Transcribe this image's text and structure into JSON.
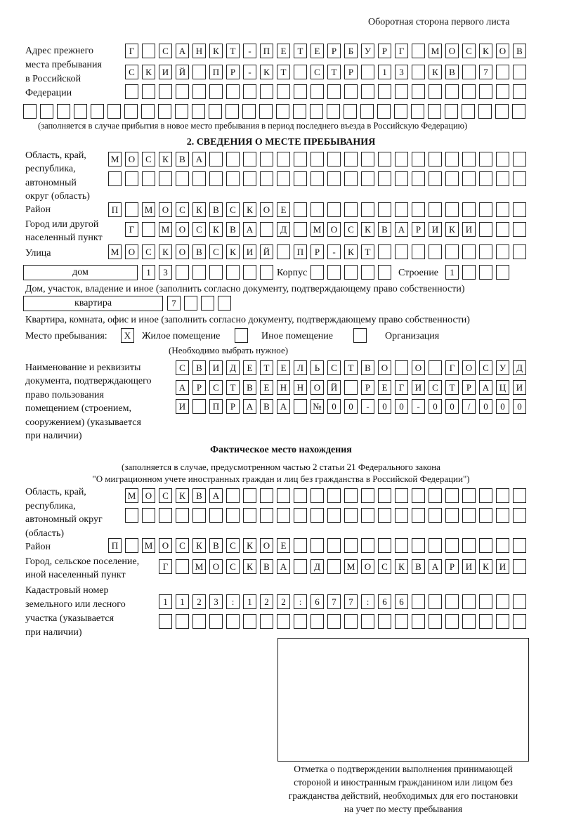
{
  "header": "Оборотная сторона первого листа",
  "prev_address": {
    "label": [
      "Адрес прежнего",
      "места пребывания",
      "в Российской",
      "Федерации"
    ],
    "rows": [
      [
        "Г",
        "",
        "С",
        "А",
        "Н",
        "К",
        "Т",
        "-",
        "П",
        "Е",
        "Т",
        "Е",
        "Р",
        "Б",
        "У",
        "Р",
        "Г",
        "",
        "М",
        "О",
        "С",
        "К",
        "О",
        "В"
      ],
      [
        "С",
        "К",
        "И",
        "Й",
        "",
        "П",
        "Р",
        "-",
        "К",
        "Т",
        "",
        "С",
        "Т",
        "Р",
        "",
        "1",
        "3",
        "",
        "К",
        "В",
        "",
        "7",
        "",
        ""
      ],
      [
        "",
        "",
        "",
        "",
        "",
        "",
        "",
        "",
        "",
        "",
        "",
        "",
        "",
        "",
        "",
        "",
        "",
        "",
        "",
        "",
        "",
        "",
        "",
        ""
      ],
      [
        "",
        "",
        "",
        "",
        "",
        "",
        "",
        "",
        "",
        "",
        "",
        "",
        "",
        "",
        "",
        "",
        "",
        "",
        "",
        "",
        "",
        "",
        "",
        "",
        "",
        "",
        "",
        "",
        "",
        ""
      ]
    ],
    "note": "(заполняется в случае прибытия в новое место пребывания в период последнего въезда в Российскую Федерацию)"
  },
  "section2": {
    "title": "2. СВЕДЕНИЯ О МЕСТЕ ПРЕБЫВАНИЯ",
    "region_label": [
      "Область, край,",
      "республика,",
      "автономный",
      "округ (область)"
    ],
    "region_rows": [
      [
        "М",
        "О",
        "С",
        "К",
        "В",
        "А",
        "",
        "",
        "",
        "",
        "",
        "",
        "",
        "",
        "",
        "",
        "",
        "",
        "",
        "",
        "",
        "",
        "",
        "",
        ""
      ],
      [
        "",
        "",
        "",
        "",
        "",
        "",
        "",
        "",
        "",
        "",
        "",
        "",
        "",
        "",
        "",
        "",
        "",
        "",
        "",
        "",
        "",
        "",
        "",
        "",
        ""
      ]
    ],
    "district_label": "Район",
    "district": [
      "П",
      "",
      "М",
      "О",
      "С",
      "К",
      "В",
      "С",
      "К",
      "О",
      "Е",
      "",
      "",
      "",
      "",
      "",
      "",
      "",
      "",
      "",
      "",
      "",
      "",
      "",
      ""
    ],
    "city_label": [
      "Город или другой",
      "населенный пункт"
    ],
    "city": [
      "Г",
      "",
      "М",
      "О",
      "С",
      "К",
      "В",
      "А",
      "",
      "Д",
      "",
      "М",
      "О",
      "С",
      "К",
      "В",
      "А",
      "Р",
      "И",
      "К",
      "И",
      "",
      "",
      ""
    ],
    "street_label": "Улица",
    "street": [
      "М",
      "О",
      "С",
      "К",
      "О",
      "В",
      "С",
      "К",
      "И",
      "Й",
      "",
      "П",
      "Р",
      "-",
      "К",
      "Т",
      "",
      "",
      "",
      "",
      "",
      "",
      "",
      "",
      ""
    ],
    "house_type": "дом",
    "house": [
      "1",
      "3",
      "",
      "",
      "",
      "",
      "",
      ""
    ],
    "korpus_label": "Корпус",
    "korpus": [
      "",
      "",
      "",
      "",
      ""
    ],
    "stroenie_label": "Строение",
    "stroenie": [
      "1",
      "",
      "",
      ""
    ],
    "house_note": "Дом, участок, владение и иное (заполнить согласно документу, подтверждающему право собственности)",
    "apt_type": "квартира",
    "apt": [
      "7",
      "",
      "",
      ""
    ],
    "apt_note": "Квартира, комната, офис и иное (заполнить согласно документу, подтверждающему право собственности)",
    "stay_label": "Место пребывания:",
    "stay_options": [
      {
        "label": "Жилое помещение",
        "mark": "X"
      },
      {
        "label": "Иное помещение",
        "mark": ""
      },
      {
        "label": "Организация",
        "mark": ""
      }
    ],
    "stay_note": "(Необходимо выбрать нужное)",
    "doc_label": [
      "Наименование и реквизиты",
      "документа, подтверждающего",
      "право пользования",
      "помещением (строением,",
      "сооружением) (указывается",
      "при наличии)"
    ],
    "doc_rows": [
      [
        "С",
        "В",
        "И",
        "Д",
        "Е",
        "Т",
        "Е",
        "Л",
        "Ь",
        "С",
        "Т",
        "В",
        "О",
        "",
        "О",
        "",
        "Г",
        "О",
        "С",
        "У",
        "Д"
      ],
      [
        "А",
        "Р",
        "С",
        "Т",
        "В",
        "Е",
        "Н",
        "Н",
        "О",
        "Й",
        "",
        "Р",
        "Е",
        "Г",
        "И",
        "С",
        "Т",
        "Р",
        "А",
        "Ц",
        "И"
      ],
      [
        "И",
        "",
        "П",
        "Р",
        "А",
        "В",
        "А",
        "",
        "№",
        "0",
        "0",
        "-",
        "0",
        "0",
        "-",
        "0",
        "0",
        "/",
        "0",
        "0",
        "0"
      ]
    ]
  },
  "actual": {
    "title": "Фактическое место нахождения",
    "note": [
      "(заполняется в случае, предусмотренном частью 2 статьи 21 Федерального закона",
      "\"О миграционном учете иностранных граждан и лиц без гражданства в Российской Федерации\")"
    ],
    "region_label": [
      "Область, край,",
      "республика,",
      "автономный округ",
      "(область)"
    ],
    "region_rows": [
      [
        "М",
        "О",
        "С",
        "К",
        "В",
        "А",
        "",
        "",
        "",
        "",
        "",
        "",
        "",
        "",
        "",
        "",
        "",
        "",
        "",
        "",
        "",
        "",
        "",
        ""
      ],
      [
        "",
        "",
        "",
        "",
        "",
        "",
        "",
        "",
        "",
        "",
        "",
        "",
        "",
        "",
        "",
        "",
        "",
        "",
        "",
        "",
        "",
        "",
        "",
        ""
      ]
    ],
    "district_label": "Район",
    "district": [
      "П",
      "",
      "М",
      "О",
      "С",
      "К",
      "В",
      "С",
      "К",
      "О",
      "Е",
      "",
      "",
      "",
      "",
      "",
      "",
      "",
      "",
      "",
      "",
      "",
      "",
      "",
      ""
    ],
    "city_label": [
      "Город, сельское поселение,",
      "иной населенный пункт"
    ],
    "city": [
      "Г",
      "",
      "М",
      "О",
      "С",
      "К",
      "В",
      "А",
      "",
      "Д",
      "",
      "М",
      "О",
      "С",
      "К",
      "В",
      "А",
      "Р",
      "И",
      "К",
      "И",
      ""
    ],
    "cadastre_label": [
      "Кадастровый номер",
      "земельного или лесного",
      "участка (указывается",
      "при наличии)"
    ],
    "cadastre_rows": [
      [
        "1",
        "1",
        "2",
        "3",
        ":",
        "1",
        "2",
        "2",
        ":",
        "6",
        "7",
        "7",
        ":",
        "6",
        "6",
        "",
        "",
        "",
        "",
        "",
        "",
        ""
      ],
      [
        "",
        "",
        "",
        "",
        "",
        "",
        "",
        "",
        "",
        "",
        "",
        "",
        "",
        "",
        "",
        "",
        "",
        "",
        "",
        "",
        "",
        ""
      ]
    ],
    "stamp_caption": [
      "Отметка о подтверждении выполнения принимающей",
      "стороной и иностранным гражданином или лицом без",
      "гражданства действий, необходимых для его постановки",
      "на учет по месту пребывания"
    ]
  }
}
